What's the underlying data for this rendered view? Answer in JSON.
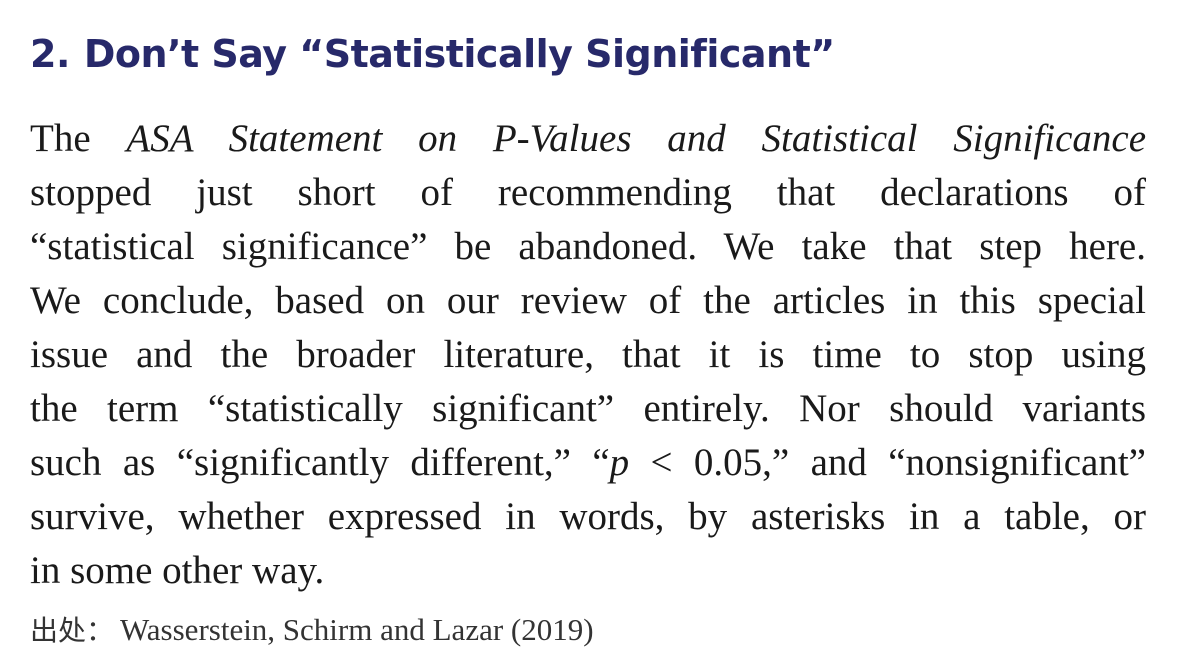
{
  "heading": {
    "number": "2.",
    "title": "Don’t Say “Statistically Significant”"
  },
  "paragraph": {
    "line1": {
      "pre": "The",
      "italic": "ASA Statement on P-Values and Statistical Significance"
    },
    "line2": "stopped just short of recommending that declarations of",
    "line3": "“statistical significance” be abandoned. We take that step here.",
    "line4": "We conclude, based on our review of the articles in this special",
    "line5": "issue and the broader literature, that it is time to stop using",
    "line6": "the term “statistically significant” entirely. Nor should variants",
    "line7": {
      "pre": "such as “significantly different,” “",
      "italic": "p",
      "post": " < 0.05,” and “nonsignificant”"
    },
    "line8": "survive, whether expressed in words, by asterisks in a table, or",
    "line9": "in some other way."
  },
  "source": {
    "label": "出处：",
    "citation": "Wasserstein, Schirm and Lazar (2019)"
  },
  "colors": {
    "heading": "#27296a",
    "body_text": "#1a1a1a"
  }
}
